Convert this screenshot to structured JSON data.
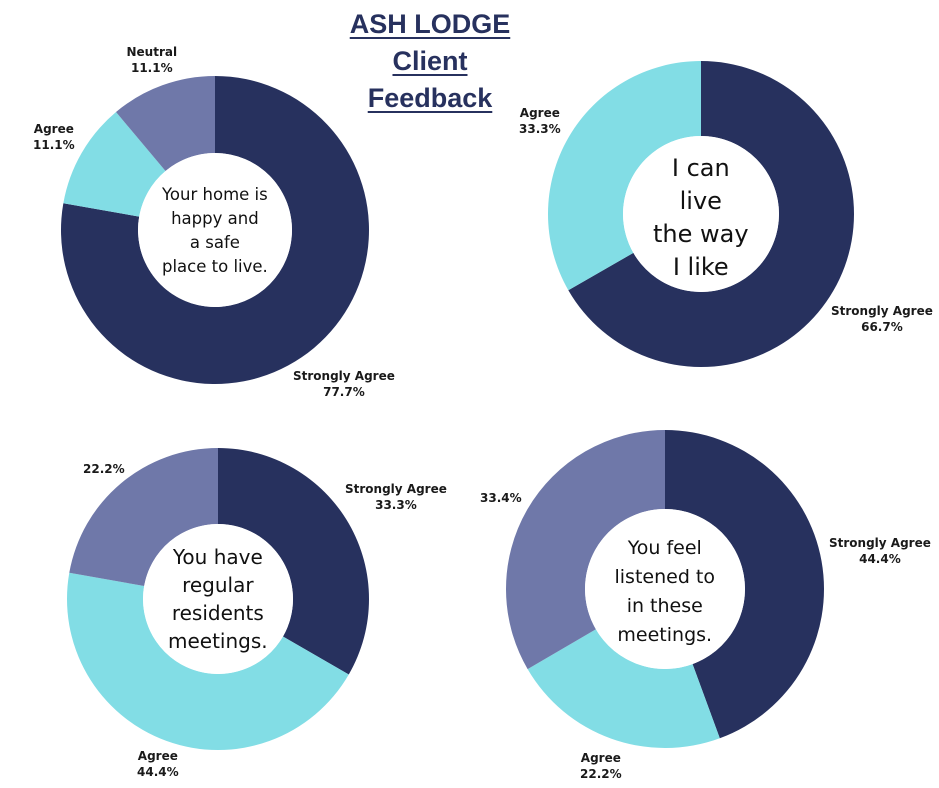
{
  "title": {
    "line1": "ASH LODGE",
    "line2": "Client",
    "line3": "Feedback"
  },
  "colors": {
    "strongly_agree": "#27315e",
    "agree": "#82dde5",
    "neutral": "#6f78a9"
  },
  "chart_data": [
    {
      "type": "pie",
      "title": "Your home is happy and a safe place to live.",
      "center_lines": [
        "Your home is",
        "happy and",
        "a safe",
        "place to live."
      ],
      "series": [
        {
          "name": "Strongly Agree",
          "label": "Strongly Agree",
          "value_text": "77.7%",
          "value": 77.7,
          "color": "#27315e"
        },
        {
          "name": "Agree",
          "label": "Agree",
          "value_text": "11.1%",
          "value": 11.1,
          "color": "#82dde5"
        },
        {
          "name": "Neutral",
          "label": "Neutral",
          "value_text": "11.1%",
          "value": 11.1,
          "color": "#6f78a9"
        }
      ]
    },
    {
      "type": "pie",
      "title": "I can live the way I like",
      "center_lines": [
        "I can",
        "live",
        "the way",
        "I like"
      ],
      "series": [
        {
          "name": "Strongly Agree",
          "label": "Strongly Agree",
          "value_text": "66.7%",
          "value": 66.7,
          "color": "#27315e"
        },
        {
          "name": "Agree",
          "label": "Agree",
          "value_text": "33.3%",
          "value": 33.3,
          "color": "#82dde5"
        }
      ]
    },
    {
      "type": "pie",
      "title": "You have regular residents meetings.",
      "center_lines": [
        "You have",
        "regular",
        "residents",
        "meetings."
      ],
      "series": [
        {
          "name": "Strongly Agree",
          "label": "Strongly Agree",
          "value_text": "33.3%",
          "value": 33.3,
          "color": "#27315e"
        },
        {
          "name": "Agree",
          "label": "Agree",
          "value_text": "44.4%",
          "value": 44.4,
          "color": "#82dde5"
        },
        {
          "name": "",
          "label": "",
          "value_text": "22.2%",
          "value": 22.2,
          "color": "#6f78a9"
        }
      ]
    },
    {
      "type": "pie",
      "title": "You feel listened to in these meetings.",
      "center_lines": [
        "You feel",
        "listened to",
        "in these",
        "meetings."
      ],
      "series": [
        {
          "name": "Strongly Agree",
          "label": "Strongly Agree",
          "value_text": "44.4%",
          "value": 44.4,
          "color": "#27315e"
        },
        {
          "name": "Agree",
          "label": "Agree",
          "value_text": "22.2%",
          "value": 22.2,
          "color": "#82dde5"
        },
        {
          "name": "",
          "label": "",
          "value_text": "33.4%",
          "value": 33.4,
          "color": "#6f78a9"
        }
      ]
    }
  ]
}
